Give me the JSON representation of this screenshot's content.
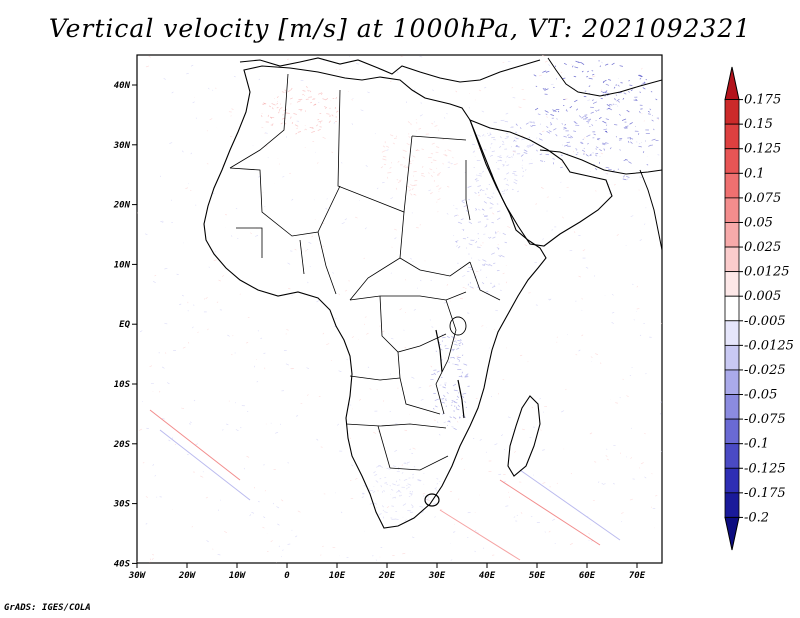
{
  "title": "Vertical velocity [m/s] at 1000hPa, VT: 2021092321",
  "footer": "GrADS: IGES/COLA",
  "axes": {
    "lon_labels": [
      "30W",
      "20W",
      "10W",
      "0",
      "10E",
      "20E",
      "30E",
      "40E",
      "50E",
      "60E",
      "70E"
    ],
    "lat_labels": [
      "40N",
      "30N",
      "20N",
      "10N",
      "EQ",
      "10S",
      "20S",
      "30S",
      "40S"
    ]
  },
  "colorbar": {
    "levels": [
      "0.175",
      "0.15",
      "0.125",
      "0.1",
      "0.075",
      "0.05",
      "0.025",
      "0.0125",
      "0.005",
      "-0.005",
      "-0.0125",
      "-0.025",
      "-0.05",
      "-0.075",
      "-0.1",
      "-0.125",
      "-0.175",
      "-0.2"
    ],
    "colors": [
      "#b3141c",
      "#cc2a2a",
      "#dd4040",
      "#e85555",
      "#ef7070",
      "#f38d8d",
      "#f7aaaa",
      "#fbcccc",
      "#fde8e8",
      "#ffffff",
      "#e6e6fb",
      "#c9c9f3",
      "#aaaaea",
      "#8b8be0",
      "#6a6ad4",
      "#4a4ac4",
      "#2e2eb4",
      "#1a1a9a",
      "#0d0d80"
    ]
  },
  "map": {
    "land_color": "#ffffff",
    "ocean_color": "#ffffff",
    "boundary_color": "#000000"
  }
}
